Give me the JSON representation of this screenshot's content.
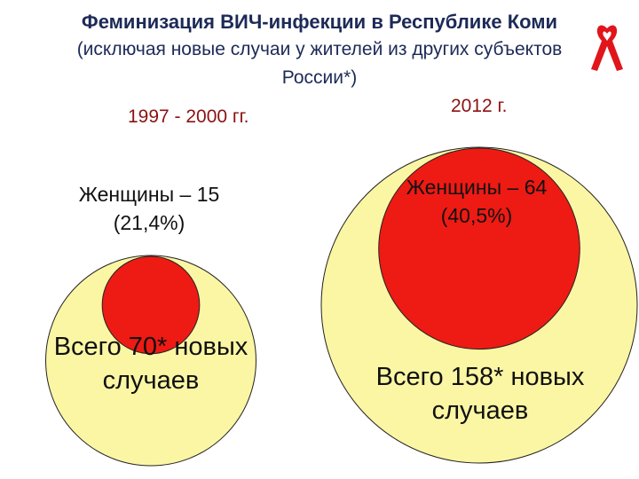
{
  "title": {
    "line1": "Феминизация ВИЧ-инфекции в Республике Коми",
    "line2": "(исключая новые случаи у жителей из других субъектов",
    "line3": "России*)"
  },
  "icon": "hiv-ribbon-icon",
  "colors": {
    "outer": "#fbf6a4",
    "inner": "#ee1a14",
    "title": "#1c2a57",
    "period": "#8b1212"
  },
  "chart_data": {
    "type": "nested-circles",
    "groups": [
      {
        "period": "1997 - 2000 гг.",
        "total": 70,
        "women": 15,
        "women_pct": 21.4,
        "women_label_1": "Женщины – 15",
        "women_label_2": "(21,4%)",
        "total_label_1": "Всего 70* новых",
        "total_label_2": "случаев"
      },
      {
        "period": "2012 г.",
        "total": 158,
        "women": 64,
        "women_pct": 40.5,
        "women_label_1": "Женщины – 64",
        "women_label_2": "(40,5%)",
        "total_label_1": "Всего 158* новых",
        "total_label_2": "случаев"
      }
    ]
  }
}
